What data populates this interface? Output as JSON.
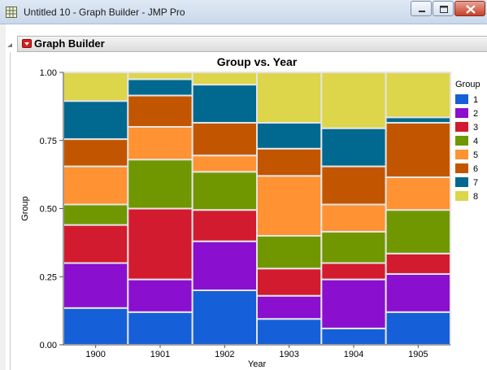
{
  "window": {
    "title": "Untitled 10 - Graph Builder - JMP Pro"
  },
  "report": {
    "title": "Graph Builder"
  },
  "chart_data": {
    "type": "bar",
    "stacked": true,
    "title": "Group vs. Year",
    "xlabel": "Year",
    "ylabel": "Group",
    "ylim": [
      0,
      1
    ],
    "yticks": [
      "0.00",
      "0.25",
      "0.50",
      "0.75",
      "1.00"
    ],
    "categories": [
      "1900",
      "1901",
      "1902",
      "1903",
      "1904",
      "1905"
    ],
    "legend_title": "Group",
    "legend_position": "right",
    "series": [
      {
        "name": "1",
        "color": "#1560d8",
        "values": [
          0.135,
          0.12,
          0.2,
          0.095,
          0.06,
          0.12
        ]
      },
      {
        "name": "2",
        "color": "#8a0fcf",
        "values": [
          0.165,
          0.12,
          0.18,
          0.085,
          0.18,
          0.14
        ]
      },
      {
        "name": "3",
        "color": "#d21b2f",
        "values": [
          0.14,
          0.26,
          0.115,
          0.1,
          0.06,
          0.075
        ]
      },
      {
        "name": "4",
        "color": "#709700",
        "values": [
          0.075,
          0.18,
          0.14,
          0.12,
          0.115,
          0.16
        ]
      },
      {
        "name": "5",
        "color": "#ff9232",
        "values": [
          0.14,
          0.12,
          0.06,
          0.22,
          0.1,
          0.12
        ]
      },
      {
        "name": "6",
        "color": "#c25600",
        "values": [
          0.1,
          0.115,
          0.12,
          0.1,
          0.14,
          0.2
        ]
      },
      {
        "name": "7",
        "color": "#016890",
        "values": [
          0.14,
          0.06,
          0.14,
          0.095,
          0.14,
          0.02
        ]
      },
      {
        "name": "8",
        "color": "#ddd54a",
        "values": [
          0.105,
          0.025,
          0.045,
          0.185,
          0.205,
          0.165
        ]
      }
    ]
  }
}
